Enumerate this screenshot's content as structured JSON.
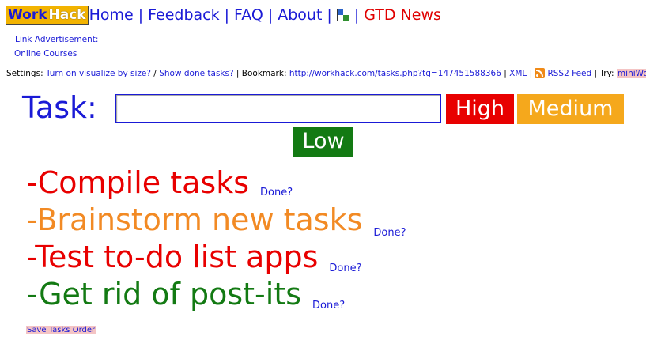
{
  "nav": {
    "logo_left": "Work",
    "logo_right": "Hack",
    "links": [
      "Home",
      "Feedback",
      "FAQ",
      "About"
    ],
    "separator": "|",
    "gtd_label": "GTD News",
    "window_icon": "windows-logo-icon"
  },
  "ads": {
    "label": "Link Advertisement:",
    "link": "Online Courses"
  },
  "settings": {
    "prefix": "Settings:",
    "visualize": "Turn on visualize by size?",
    "slash": "/",
    "show_done": "Show done tasks?",
    "bookmark_label": "| Bookmark:",
    "bookmark_url": "http://workhack.com/tasks.php?tg=147451588366",
    "xml_sep": "|",
    "xml": "XML",
    "rss_sep": "|",
    "rss_icon": "rss-icon",
    "rss": "RSS2 Feed",
    "try_label": "| Try:",
    "mini": "miniWorkHack"
  },
  "form": {
    "label": "Task:",
    "input_value": "",
    "high": "High",
    "medium": "Medium",
    "low": "Low"
  },
  "tasks": [
    {
      "text": "-Compile tasks",
      "done": "Done?",
      "color": "#e80000"
    },
    {
      "text": "-Brainstorm new tasks",
      "done": "Done?",
      "color": "#f28a24"
    },
    {
      "text": "-Test to-do list apps",
      "done": "Done?",
      "color": "#e80000"
    },
    {
      "text": "-Get rid of post-its",
      "done": "Done?",
      "color": "#137a13"
    }
  ],
  "save_label": "Save Tasks Order",
  "colors": {
    "link": "#1a1ad6",
    "high": "#e80000",
    "medium": "#f5a81c",
    "low": "#137a13",
    "logo_bg": "#f2b300"
  }
}
